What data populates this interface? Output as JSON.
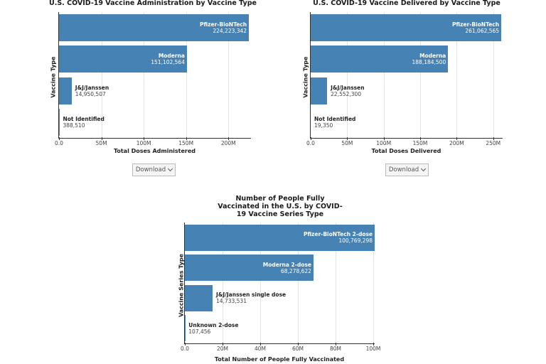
{
  "download_label": "Download",
  "chart_data": [
    {
      "type": "bar",
      "orientation": "horizontal",
      "title": "U.S. COVID-19 Vaccine Administration by Vaccine Type",
      "xlabel": "Total Doses Administered",
      "ylabel": "Vaccine Type",
      "xlim": [
        0,
        225000000
      ],
      "xticks": [
        {
          "value": 0,
          "label": "0.0"
        },
        {
          "value": 50000000,
          "label": "50M"
        },
        {
          "value": 100000000,
          "label": "100M"
        },
        {
          "value": 150000000,
          "label": "150M"
        },
        {
          "value": 200000000,
          "label": "200M"
        }
      ],
      "categories": [
        "Pfizer-BioNTech",
        "Moderna",
        "J&J/Janssen",
        "Not Identified"
      ],
      "values": [
        224223342,
        151102564,
        14950507,
        388510
      ],
      "value_labels": [
        "224,223,342",
        "151,102,564",
        "14,950,507",
        "388,510"
      ],
      "bar_color": "#4682b4",
      "grid": true
    },
    {
      "type": "bar",
      "orientation": "horizontal",
      "title": "U.S. COVID-19 Vaccine Delivered by Vaccine Type",
      "xlabel": "Total Doses Delivered",
      "ylabel": "Vaccine Type",
      "xlim": [
        0,
        261000000
      ],
      "xticks": [
        {
          "value": 0,
          "label": "0.0"
        },
        {
          "value": 50000000,
          "label": "50M"
        },
        {
          "value": 100000000,
          "label": "100M"
        },
        {
          "value": 150000000,
          "label": "150M"
        },
        {
          "value": 200000000,
          "label": "200M"
        },
        {
          "value": 250000000,
          "label": "250M"
        }
      ],
      "categories": [
        "Pfizer-BioNTech",
        "Moderna",
        "J&J/Janssen",
        "Not Identified"
      ],
      "values": [
        261062565,
        188184500,
        22552300,
        19350
      ],
      "value_labels": [
        "261,062,565",
        "188,184,500",
        "22,552,300",
        "19,350"
      ],
      "bar_color": "#4682b4",
      "grid": true
    },
    {
      "type": "bar",
      "orientation": "horizontal",
      "title": "Number of People Fully Vaccinated in the U.S. by COVID-19 Vaccine Series Type",
      "xlabel": "Total Number of People Fully Vaccinated",
      "ylabel": "Vaccine Series Type",
      "xlim": [
        0,
        100000000
      ],
      "xticks": [
        {
          "value": 0,
          "label": "0.0"
        },
        {
          "value": 20000000,
          "label": "20M"
        },
        {
          "value": 40000000,
          "label": "40M"
        },
        {
          "value": 60000000,
          "label": "60M"
        },
        {
          "value": 80000000,
          "label": "80M"
        },
        {
          "value": 100000000,
          "label": "100M"
        }
      ],
      "categories": [
        "Pfizer-BioNTech 2-dose",
        "Moderna 2-dose",
        "J&J/Janssen single dose",
        "Unknown 2-dose"
      ],
      "values": [
        100769298,
        68278622,
        14733531,
        107456
      ],
      "value_labels": [
        "100,769,298",
        "68,278,622",
        "14,733,531",
        "107,456"
      ],
      "bar_color": "#4682b4",
      "grid": true
    }
  ]
}
